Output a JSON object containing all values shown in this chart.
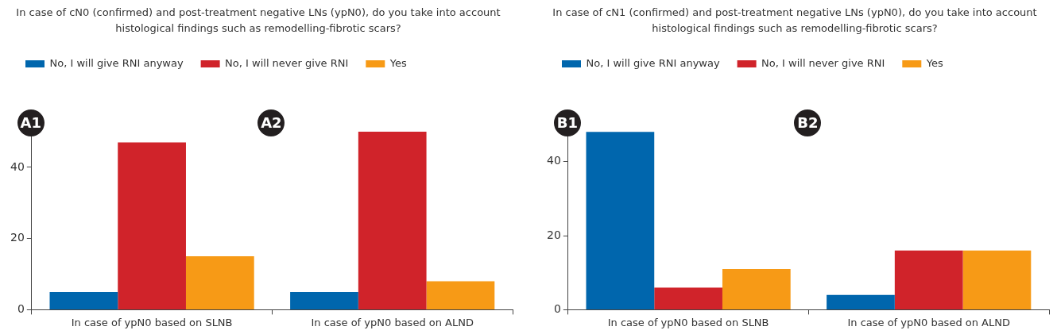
{
  "chart_data": [
    {
      "type": "bar",
      "title": "In case of cN0 (confirmed) and post-treatment negative LNs (ypN0), do you take into account histological findings such as remodelling-fibrotic scars?",
      "categories": [
        "In case of ypN0 based on SLNB",
        "In case of ypN0 based on ALND"
      ],
      "series": [
        {
          "name": "No, I will give RNI anyway",
          "color": "#0066ad",
          "values": [
            5,
            5
          ]
        },
        {
          "name": "No, I will never give RNI",
          "color": "#d0232a",
          "values": [
            47,
            50
          ]
        },
        {
          "name": "Yes",
          "color": "#f79a16",
          "values": [
            15,
            8
          ]
        }
      ],
      "ylim": [
        0,
        52
      ],
      "yticks": [
        0,
        20,
        40
      ],
      "legend": "top left",
      "annotations": [
        "A1",
        "A2"
      ]
    },
    {
      "type": "bar",
      "title": "In case of cN1 (confirmed) and post-treatment negative LNs (ypN0), do you take into account histological findings such as remodelling-fibrotic scars?",
      "categories": [
        "In case of ypN0 based on SLNB",
        "In case of ypN0 based on ALND"
      ],
      "series": [
        {
          "name": "No, I will give RNI anyway",
          "color": "#0066ad",
          "values": [
            48,
            4
          ]
        },
        {
          "name": "No, I will never give RNI",
          "color": "#d0232a",
          "values": [
            6,
            16
          ]
        },
        {
          "name": "Yes",
          "color": "#f79a16",
          "values": [
            11,
            16
          ]
        }
      ],
      "ylim": [
        0,
        50
      ],
      "yticks": [
        0,
        20,
        40
      ],
      "legend": "top left",
      "annotations": [
        "B1",
        "B2"
      ]
    }
  ]
}
